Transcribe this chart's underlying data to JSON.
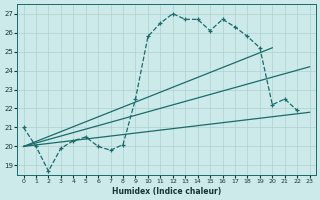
{
  "bg_color": "#cceaea",
  "grid_color": "#b0d0d0",
  "line_color": "#1a6b6b",
  "xlabel": "Humidex (Indice chaleur)",
  "xlim": [
    -0.5,
    23.5
  ],
  "ylim": [
    18.5,
    27.5
  ],
  "yticks": [
    19,
    20,
    21,
    22,
    23,
    24,
    25,
    26,
    27
  ],
  "xticks": [
    0,
    1,
    2,
    3,
    4,
    5,
    6,
    7,
    8,
    9,
    10,
    11,
    12,
    13,
    14,
    15,
    16,
    17,
    18,
    19,
    20,
    21,
    22,
    23
  ],
  "curve_segments": [
    {
      "x": [
        0,
        1,
        2,
        3,
        4,
        5,
        6,
        7,
        8,
        9,
        10,
        11,
        12,
        13,
        14,
        15,
        16,
        17,
        18,
        19,
        20,
        21,
        22
      ],
      "y": [
        21.0,
        20.0,
        18.7,
        19.9,
        20.3,
        20.5,
        20.0,
        19.8,
        20.1,
        22.5,
        25.8,
        26.5,
        27.0,
        26.7,
        26.7,
        26.1,
        26.7,
        26.3,
        25.8,
        25.2,
        22.2,
        22.5,
        21.9
      ]
    }
  ],
  "straight_lines": [
    {
      "x": [
        0,
        23
      ],
      "y": [
        20.0,
        21.9
      ]
    },
    {
      "x": [
        0,
        20
      ],
      "y": [
        20.0,
        25.2
      ]
    },
    {
      "x": [
        0,
        23
      ],
      "y": [
        20.0,
        24.2
      ]
    }
  ]
}
